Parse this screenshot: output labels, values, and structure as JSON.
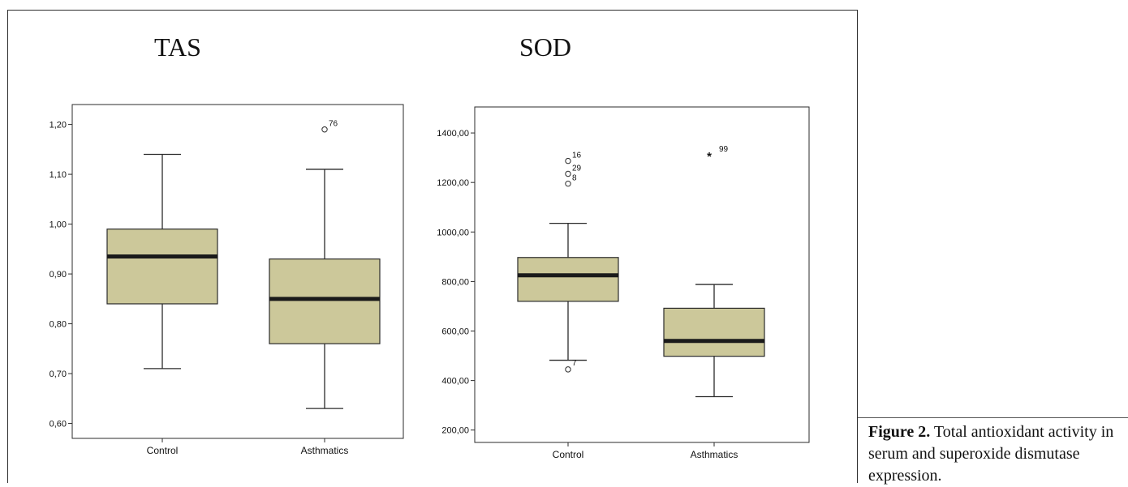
{
  "titles": {
    "tas": "TAS",
    "sod": "SOD"
  },
  "caption": {
    "label": "Figure 2.",
    "text": " Total antioxidant activity in serum and superoxide dismutase expression."
  },
  "colors": {
    "box_fill": "#ccc89a",
    "median": "#1a1a1a",
    "frame": "#2b2b2b"
  },
  "chart_data": [
    {
      "type": "box",
      "title": "TAS",
      "categories": [
        "Control",
        "Asthmatics"
      ],
      "ylim": [
        0.57,
        1.24
      ],
      "yticks": [
        {
          "v": 0.6,
          "label": "0,60"
        },
        {
          "v": 0.7,
          "label": "0,70"
        },
        {
          "v": 0.8,
          "label": "0,80"
        },
        {
          "v": 0.9,
          "label": "0,90"
        },
        {
          "v": 1.0,
          "label": "1,00"
        },
        {
          "v": 1.1,
          "label": "1,10"
        },
        {
          "v": 1.2,
          "label": "1,20"
        }
      ],
      "boxes": [
        {
          "category": "Control",
          "min": 0.71,
          "q1": 0.84,
          "median": 0.935,
          "q3": 0.99,
          "max": 1.14,
          "outliers": []
        },
        {
          "category": "Asthmatics",
          "min": 0.63,
          "q1": 0.76,
          "median": 0.85,
          "q3": 0.93,
          "max": 1.11,
          "outliers": [
            {
              "value": 1.19,
              "label": "76",
              "marker": "circle"
            }
          ]
        }
      ]
    },
    {
      "type": "box",
      "title": "SOD",
      "categories": [
        "Control",
        "Asthmatics"
      ],
      "ylim": [
        150,
        1505
      ],
      "yticks": [
        {
          "v": 200,
          "label": "200,00"
        },
        {
          "v": 400,
          "label": "400,00"
        },
        {
          "v": 600,
          "label": "600,00"
        },
        {
          "v": 800,
          "label": "800,00"
        },
        {
          "v": 1000,
          "label": "1000,00"
        },
        {
          "v": 1200,
          "label": "1200,00"
        },
        {
          "v": 1400,
          "label": "1400,00"
        }
      ],
      "boxes": [
        {
          "category": "Control",
          "min": 482,
          "q1": 720,
          "median": 825,
          "q3": 897,
          "max": 1035,
          "outliers": [
            {
              "value": 1287,
              "label": "16",
              "marker": "circle"
            },
            {
              "value": 1235,
              "label": "29",
              "marker": "circle"
            },
            {
              "value": 1195,
              "label": "8",
              "marker": "circle"
            },
            {
              "value": 445,
              "label": "7",
              "marker": "circle"
            }
          ]
        },
        {
          "category": "Asthmatics",
          "min": 335,
          "q1": 498,
          "median": 560,
          "q3": 692,
          "max": 788,
          "outliers": [
            {
              "value": 1312,
              "label": "99",
              "marker": "star"
            }
          ]
        }
      ]
    }
  ]
}
